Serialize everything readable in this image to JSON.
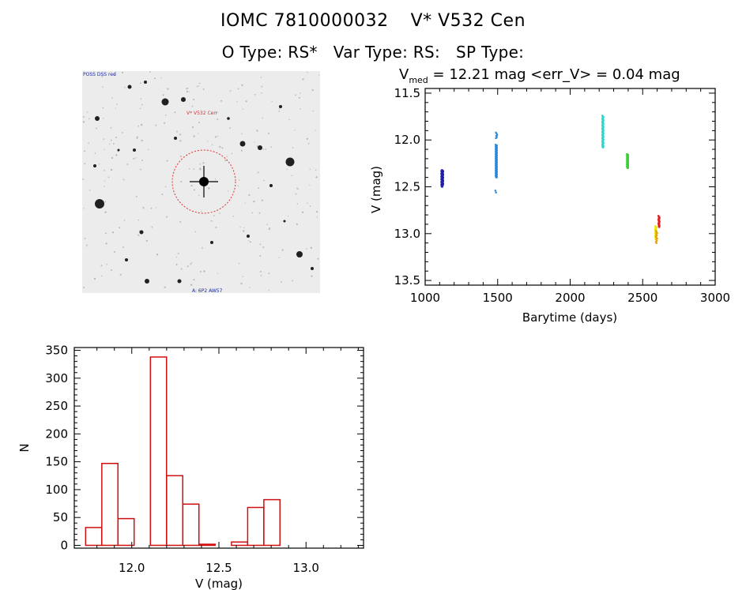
{
  "header": {
    "id_name": "IOMC 7810000032",
    "star_name": "V* V532 Cen",
    "object_type": "O Type: RS*",
    "var_type": "Var Type: RS:",
    "sp_type": "SP Type:"
  },
  "finder": {
    "target_label": "V* V532 Cen",
    "corner_labels": [
      "POSS DSS red",
      "",
      "A: 6P2 AW57",
      ""
    ],
    "colors": {
      "marker": "#e03030",
      "blue_label": "#1a2aa8"
    }
  },
  "chart_data": [
    {
      "type": "scatter",
      "title_main": "V",
      "title_sub": "med",
      "title_rest": "= 12.21 mag <err_V> = 0.04 mag",
      "xlabel": "Barytime (days)",
      "ylabel": "V (mag)",
      "xlim": [
        1000,
        3000
      ],
      "ylim": [
        13.55,
        11.45
      ],
      "y_inverted": true,
      "x_ticks": [
        1000,
        1500,
        2000,
        2500,
        3000
      ],
      "y_ticks": [
        "11.5",
        "12.0",
        "12.5",
        "13.0",
        "13.5"
      ],
      "y_tick_values": [
        11.5,
        12.0,
        12.5,
        13.0,
        13.5
      ],
      "series": [
        {
          "color": "#1f1fa8",
          "x": 1115,
          "y_range": [
            12.33,
            12.5
          ],
          "points": 30
        },
        {
          "color": "#1f1fa8",
          "x": 1120,
          "y_range": [
            12.32,
            12.48
          ],
          "points": 25
        },
        {
          "color": "#2a86d8",
          "x": 1490,
          "y_range": [
            12.05,
            12.4
          ],
          "points": 70
        },
        {
          "color": "#2a86d8",
          "x": 1492,
          "y_range": [
            11.92,
            11.98
          ],
          "points": 6
        },
        {
          "color": "#2a86d8",
          "x": 1488,
          "y_range": [
            12.54,
            12.56
          ],
          "points": 2
        },
        {
          "color": "#28d8d0",
          "x": 2225,
          "y_range": [
            11.74,
            12.08
          ],
          "points": 50
        },
        {
          "color": "#36d036",
          "x": 2395,
          "y_range": [
            12.15,
            12.3
          ],
          "points": 35
        },
        {
          "color": "#e8e800",
          "x": 2590,
          "y_range": [
            12.92,
            13.06
          ],
          "points": 20
        },
        {
          "color": "#e8a000",
          "x": 2595,
          "y_range": [
            12.97,
            13.1
          ],
          "points": 12
        },
        {
          "color": "#e02020",
          "x": 2612,
          "y_range": [
            12.81,
            12.93
          ],
          "points": 15
        }
      ]
    },
    {
      "type": "bar",
      "xlabel": "V (mag)",
      "ylabel": "N",
      "xlim": [
        11.67,
        13.33
      ],
      "ylim": [
        -5,
        355
      ],
      "x_ticks": [
        "12.0",
        "12.5",
        "13.0"
      ],
      "x_tick_values": [
        12.0,
        12.5,
        13.0
      ],
      "y_ticks": [
        "0",
        "50",
        "100",
        "150",
        "200",
        "250",
        "300",
        "350"
      ],
      "y_tick_values": [
        0,
        50,
        100,
        150,
        200,
        250,
        300,
        350
      ],
      "bin_width": 0.0925,
      "bins": [
        {
          "left": 11.735,
          "value": 32
        },
        {
          "left": 11.828,
          "value": 147
        },
        {
          "left": 11.921,
          "value": 48
        },
        {
          "left": 12.014,
          "value": 0
        },
        {
          "left": 12.107,
          "value": 338
        },
        {
          "left": 12.2,
          "value": 125
        },
        {
          "left": 12.293,
          "value": 74
        },
        {
          "left": 12.386,
          "value": 2
        },
        {
          "left": 12.479,
          "value": 0
        },
        {
          "left": 12.572,
          "value": 6
        },
        {
          "left": 12.665,
          "value": 68
        },
        {
          "left": 12.758,
          "value": 82
        }
      ],
      "bar_color": "#d01010"
    }
  ]
}
